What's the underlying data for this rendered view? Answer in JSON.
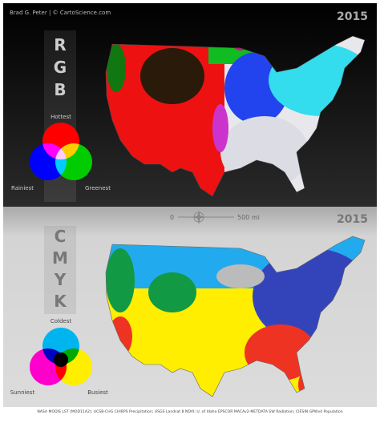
{
  "header": {
    "author": "Brad G. Peter | © CartoScience.com"
  },
  "panels": [
    {
      "year": "2015",
      "letters": [
        "R",
        "G",
        "B"
      ],
      "legend": {
        "top": "Hottest",
        "left": "Rainiest",
        "right": "Greenest"
      }
    },
    {
      "year": "2015",
      "letters": [
        "C",
        "M",
        "Y",
        "K"
      ],
      "legend": {
        "top": "Coldest",
        "left": "Sunniest",
        "right": "Busiest"
      }
    }
  ],
  "scale": {
    "start": "0",
    "end": "500 mi"
  },
  "footer": {
    "source": "NASA MODIS LST (MOD11A2); UCSB-CHG CHIRPS Precipitation; USGS Landsat 8 NDVI; U. of Idaho EPSCOR MACAv2-METDATA SW Radiation; CIESIN GPWv4 Population"
  }
}
